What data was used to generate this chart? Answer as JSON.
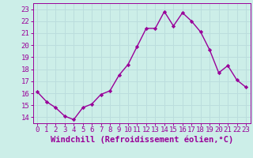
{
  "x": [
    0,
    1,
    2,
    3,
    4,
    5,
    6,
    7,
    8,
    9,
    10,
    11,
    12,
    13,
    14,
    15,
    16,
    17,
    18,
    19,
    20,
    21,
    22,
    23
  ],
  "y": [
    16.1,
    15.3,
    14.8,
    14.1,
    13.8,
    14.8,
    15.1,
    15.9,
    16.2,
    17.5,
    18.4,
    19.9,
    21.4,
    21.4,
    22.8,
    21.6,
    22.7,
    22.0,
    21.1,
    19.6,
    17.7,
    18.3,
    17.1,
    16.5
  ],
  "line_color": "#990099",
  "marker": "D",
  "marker_size": 2.2,
  "xlabel": "Windchill (Refroidissement éolien,°C)",
  "xlabel_fontsize": 7.5,
  "ylabel_ticks": [
    14,
    15,
    16,
    17,
    18,
    19,
    20,
    21,
    22,
    23
  ],
  "xtick_labels": [
    "0",
    "1",
    "2",
    "3",
    "4",
    "5",
    "6",
    "7",
    "8",
    "9",
    "10",
    "11",
    "12",
    "13",
    "14",
    "15",
    "16",
    "17",
    "18",
    "19",
    "20",
    "21",
    "22",
    "23"
  ],
  "ylim": [
    13.5,
    23.5
  ],
  "xlim": [
    -0.5,
    23.5
  ],
  "bg_color": "#cceee8",
  "grid_color": "#bbdddd",
  "tick_fontsize": 6.5,
  "linewidth": 1.0
}
